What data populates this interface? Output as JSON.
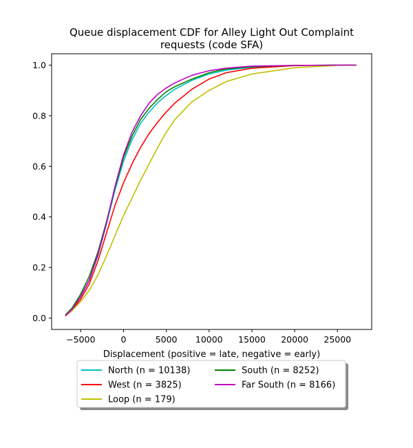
{
  "chart_data": {
    "type": "line",
    "title_lines": [
      "Queue displacement CDF for Alley Light Out Complaint",
      "requests (code SFA)"
    ],
    "xlabel": "Displacement (positive = late, negative = early)",
    "ylabel": "",
    "xlim": [
      -8400,
      29000
    ],
    "ylim": [
      -0.045,
      1.045
    ],
    "x_ticks": [
      -5000,
      0,
      5000,
      10000,
      15000,
      20000,
      25000
    ],
    "x_tick_labels": [
      "−5000",
      "0",
      "5000",
      "10000",
      "15000",
      "20000",
      "25000"
    ],
    "y_ticks": [
      0.0,
      0.2,
      0.4,
      0.6,
      0.8,
      1.0
    ],
    "y_tick_labels": [
      "0.0",
      "0.2",
      "0.4",
      "0.6",
      "0.8",
      "1.0"
    ],
    "grid": false,
    "legend_placement": "below plot, two columns",
    "series": [
      {
        "name": "North (n = 10138)",
        "color": "#00bfbf",
        "x": [
          -6800,
          -6000,
          -5000,
          -4000,
          -3000,
          -2000,
          -1000,
          0,
          1000,
          2000,
          3000,
          4000,
          5000,
          6000,
          8000,
          10000,
          12000,
          15000,
          20000,
          25000,
          27200
        ],
        "y": [
          0.01,
          0.035,
          0.085,
          0.15,
          0.245,
          0.37,
          0.505,
          0.62,
          0.705,
          0.77,
          0.815,
          0.852,
          0.88,
          0.905,
          0.94,
          0.965,
          0.98,
          0.992,
          0.999,
          1.0,
          1.0
        ]
      },
      {
        "name": "West (n = 3825)",
        "color": "#ff0000",
        "x": [
          -6800,
          -6000,
          -5000,
          -4000,
          -3000,
          -2000,
          -1000,
          0,
          1000,
          2000,
          3000,
          4000,
          5000,
          6000,
          8000,
          10000,
          12000,
          15000,
          20000,
          25000,
          27200
        ],
        "y": [
          0.008,
          0.03,
          0.075,
          0.135,
          0.225,
          0.335,
          0.445,
          0.535,
          0.61,
          0.675,
          0.73,
          0.775,
          0.815,
          0.85,
          0.905,
          0.945,
          0.97,
          0.988,
          0.998,
          1.0,
          1.0
        ]
      },
      {
        "name": "Loop (n = 179)",
        "color": "#bfbf00",
        "x": [
          -6800,
          -6000,
          -5000,
          -4000,
          -3000,
          -2000,
          -1000,
          0,
          1000,
          2000,
          3000,
          4000,
          5000,
          6000,
          8000,
          10000,
          12000,
          15000,
          20000,
          25000,
          27200
        ],
        "y": [
          0.01,
          0.03,
          0.065,
          0.11,
          0.17,
          0.245,
          0.325,
          0.405,
          0.475,
          0.545,
          0.61,
          0.675,
          0.735,
          0.785,
          0.855,
          0.9,
          0.935,
          0.965,
          0.99,
          0.999,
          1.0
        ]
      },
      {
        "name": "South (n = 8252)",
        "color": "#008000",
        "x": [
          -6800,
          -6000,
          -5000,
          -4000,
          -3000,
          -2000,
          -1000,
          0,
          1000,
          2000,
          3000,
          4000,
          5000,
          6000,
          8000,
          10000,
          12000,
          15000,
          20000,
          25000,
          27200
        ],
        "y": [
          0.012,
          0.04,
          0.095,
          0.165,
          0.26,
          0.38,
          0.515,
          0.635,
          0.72,
          0.785,
          0.83,
          0.865,
          0.895,
          0.915,
          0.945,
          0.97,
          0.985,
          0.994,
          0.999,
          1.0,
          1.0
        ]
      },
      {
        "name": "Far South (n = 8166)",
        "color": "#bf00bf",
        "x": [
          -6800,
          -6000,
          -5000,
          -4000,
          -3000,
          -2000,
          -1000,
          0,
          1000,
          2000,
          3000,
          4000,
          5000,
          6000,
          8000,
          10000,
          12000,
          15000,
          20000,
          25000,
          27200
        ],
        "y": [
          0.01,
          0.035,
          0.085,
          0.15,
          0.25,
          0.375,
          0.52,
          0.645,
          0.735,
          0.8,
          0.85,
          0.885,
          0.91,
          0.93,
          0.96,
          0.978,
          0.988,
          0.996,
          0.999,
          1.0,
          1.0
        ]
      }
    ]
  }
}
